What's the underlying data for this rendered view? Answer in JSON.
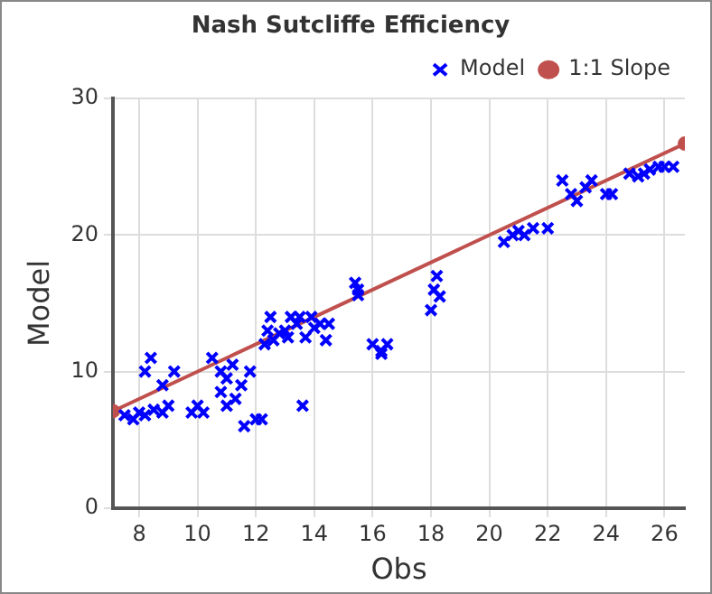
{
  "chart_data": {
    "type": "scatter",
    "title": "Nash Sutcliffe Efficiency",
    "xlabel": "Obs",
    "ylabel": "Model",
    "xlim": [
      7.1,
      26.7
    ],
    "xticks": [
      8,
      10,
      12,
      14,
      16,
      18,
      20,
      22,
      24,
      26
    ],
    "ylim": [
      0,
      30
    ],
    "yticks": [
      0,
      10,
      20,
      30
    ],
    "grid": true,
    "legend": "top right",
    "series": [
      {
        "name": "Model",
        "marker": "cross",
        "color": "#0000ff",
        "x": [
          7.5,
          7.8,
          8.0,
          8.2,
          8.5,
          8.8,
          9.0,
          8.2,
          8.4,
          8.8,
          9.2,
          9.8,
          10.0,
          10.2,
          10.5,
          10.8,
          10.8,
          11.0,
          11.2,
          11.0,
          11.3,
          11.5,
          11.6,
          11.8,
          12.0,
          12.2,
          12.3,
          12.5,
          12.6,
          12.8,
          13.0,
          13.2,
          13.4,
          13.5,
          13.7,
          13.6,
          13.9,
          14.0,
          14.2,
          14.5,
          14.4,
          12.4,
          13.1,
          15.4,
          15.5,
          15.5,
          16.0,
          16.3,
          16.5,
          16.3,
          18.0,
          18.1,
          18.3,
          18.2,
          20.5,
          20.8,
          21.0,
          21.2,
          21.5,
          22.0,
          22.5,
          22.8,
          23.0,
          23.3,
          23.5,
          24.0,
          24.2,
          24.8,
          25.3,
          25.5,
          25.8,
          26.0,
          26.3,
          25.1
        ],
        "values": [
          6.8,
          6.5,
          7.0,
          6.8,
          7.2,
          7.0,
          7.5,
          10,
          11,
          9,
          10,
          7,
          7.5,
          7,
          11,
          10,
          8.5,
          9.5,
          10.5,
          7.5,
          8,
          9,
          6,
          10,
          6.5,
          6.5,
          12,
          14,
          12.3,
          12.8,
          13,
          14,
          13.5,
          14,
          12.5,
          7.5,
          14,
          13.2,
          13.5,
          13.5,
          12.3,
          13,
          12.5,
          16.5,
          16,
          15.6,
          12,
          11.5,
          12,
          11.3,
          14.5,
          16,
          15.5,
          17,
          19.5,
          20,
          20.3,
          20,
          20.5,
          20.5,
          24,
          23,
          22.5,
          23.5,
          24,
          23,
          23,
          24.5,
          24.5,
          24.8,
          25,
          25,
          25,
          24.3
        ]
      },
      {
        "name": "1:1 Slope",
        "type": "line",
        "marker": "circle",
        "color": "#c0504d",
        "x": [
          7.1,
          26.7
        ],
        "values": [
          7.1,
          26.7
        ]
      }
    ]
  }
}
